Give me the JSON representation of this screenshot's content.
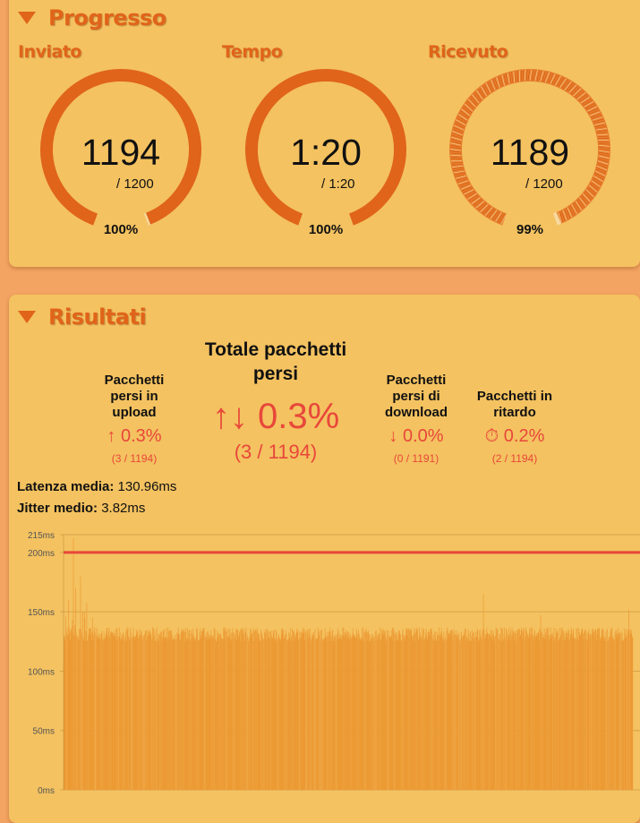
{
  "progress": {
    "title": "Progresso",
    "gauges": [
      {
        "label": "Inviato",
        "value": "1194",
        "total": "/ 1200",
        "percent": "100%",
        "fraction": 0.995,
        "style": "solid"
      },
      {
        "label": "Tempo",
        "value": "1:20",
        "total": "/ 1:20",
        "percent": "100%",
        "fraction": 1.0,
        "style": "solid"
      },
      {
        "label": "Ricevuto",
        "value": "1189",
        "total": "/ 1200",
        "percent": "99%",
        "fraction": 0.991,
        "style": "textured"
      }
    ]
  },
  "results": {
    "title": "Risultati",
    "upload": {
      "title": "Pacchetti persi in upload",
      "main": "↑ 0.3%",
      "sub": "(3 / 1194)"
    },
    "total": {
      "title": "Totale pacchetti persi",
      "main": "↑↓ 0.3%",
      "sub": "(3 / 1194)"
    },
    "download": {
      "title": "Pacchetti persi di download",
      "main": "↓ 0.0%",
      "sub": "(0 / 1191)"
    },
    "delayed": {
      "title": "Pacchetti in ritardo",
      "main": "⏱ 0.2%",
      "sub": "(2 / 1194)"
    },
    "latency": {
      "label": "Latenza media:",
      "value": "130.96ms"
    },
    "jitter": {
      "label": "Jitter medio:",
      "value": "3.82ms"
    }
  },
  "colors": {
    "accent": "#e0641a",
    "card": "#f4c260",
    "page": "#f4a462",
    "loss": "#e8473b",
    "bars": "#ec9a34",
    "threshold": "#e8473b"
  },
  "chart_data": {
    "type": "bar",
    "ylim": [
      0,
      215
    ],
    "yticks": [
      "0ms",
      "50ms",
      "100ms",
      "150ms",
      "200ms",
      "215ms"
    ],
    "ytick_values": [
      0,
      50,
      100,
      150,
      200,
      215
    ],
    "threshold": 200,
    "x_count": 1194,
    "typical_value": 131,
    "spikes": [
      {
        "x": 10,
        "y": 160
      },
      {
        "x": 20,
        "y": 212
      },
      {
        "x": 25,
        "y": 170
      },
      {
        "x": 35,
        "y": 180
      },
      {
        "x": 40,
        "y": 150
      },
      {
        "x": 60,
        "y": 145
      },
      {
        "x": 880,
        "y": 165
      },
      {
        "x": 1000,
        "y": 147
      },
      {
        "x": 1185,
        "y": 152
      }
    ],
    "grid": true
  }
}
